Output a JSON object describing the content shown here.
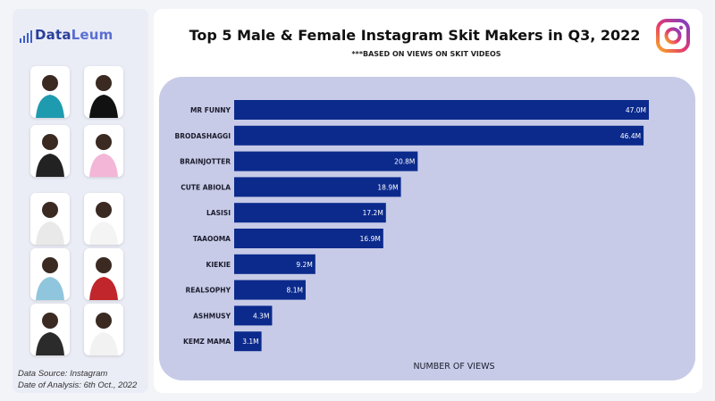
{
  "brand": {
    "name_part1": "Data",
    "name_part2": "Leum"
  },
  "colors": {
    "bar": "#0b2a8c",
    "chart_bg": "#c7cbe7",
    "brand": "#2a3f9a"
  },
  "icons": {
    "platform": "instagram-icon"
  },
  "people": [
    "person-photo",
    "person-photo",
    "person-photo",
    "person-photo",
    "person-photo",
    "person-photo",
    "person-photo",
    "person-photo",
    "person-photo",
    "person-photo"
  ],
  "footer": {
    "source": "Data Source: Instagram",
    "date": "Date of Analysis: 6th Oct., 2022"
  },
  "chart_data": {
    "type": "bar",
    "orientation": "horizontal",
    "title": "Top 5 Male & Female Instagram Skit Makers in Q3, 2022",
    "subtitle": "***BASED ON VIEWS ON SKIT VIDEOS",
    "xlabel": "NUMBER OF VIEWS",
    "ylabel": "",
    "categories": [
      "MR FUNNY",
      "BRODASHAGGI",
      "BRAINJOTTER",
      "CUTE ABIOLA",
      "LASISI",
      "TAAOOMA",
      "KIEKIE",
      "REALSOPHY",
      "ASHMUSY",
      "KEMZ MAMA"
    ],
    "values": [
      47.0,
      46.4,
      20.8,
      18.9,
      17.2,
      16.9,
      9.2,
      8.1,
      4.3,
      3.1
    ],
    "value_labels": [
      "47.0M",
      "46.4M",
      "20.8M",
      "18.9M",
      "17.2M",
      "16.9M",
      "9.2M",
      "8.1M",
      "4.3M",
      "3.1M"
    ],
    "xlim": [
      0,
      47
    ],
    "grid": false,
    "legend": "none"
  }
}
